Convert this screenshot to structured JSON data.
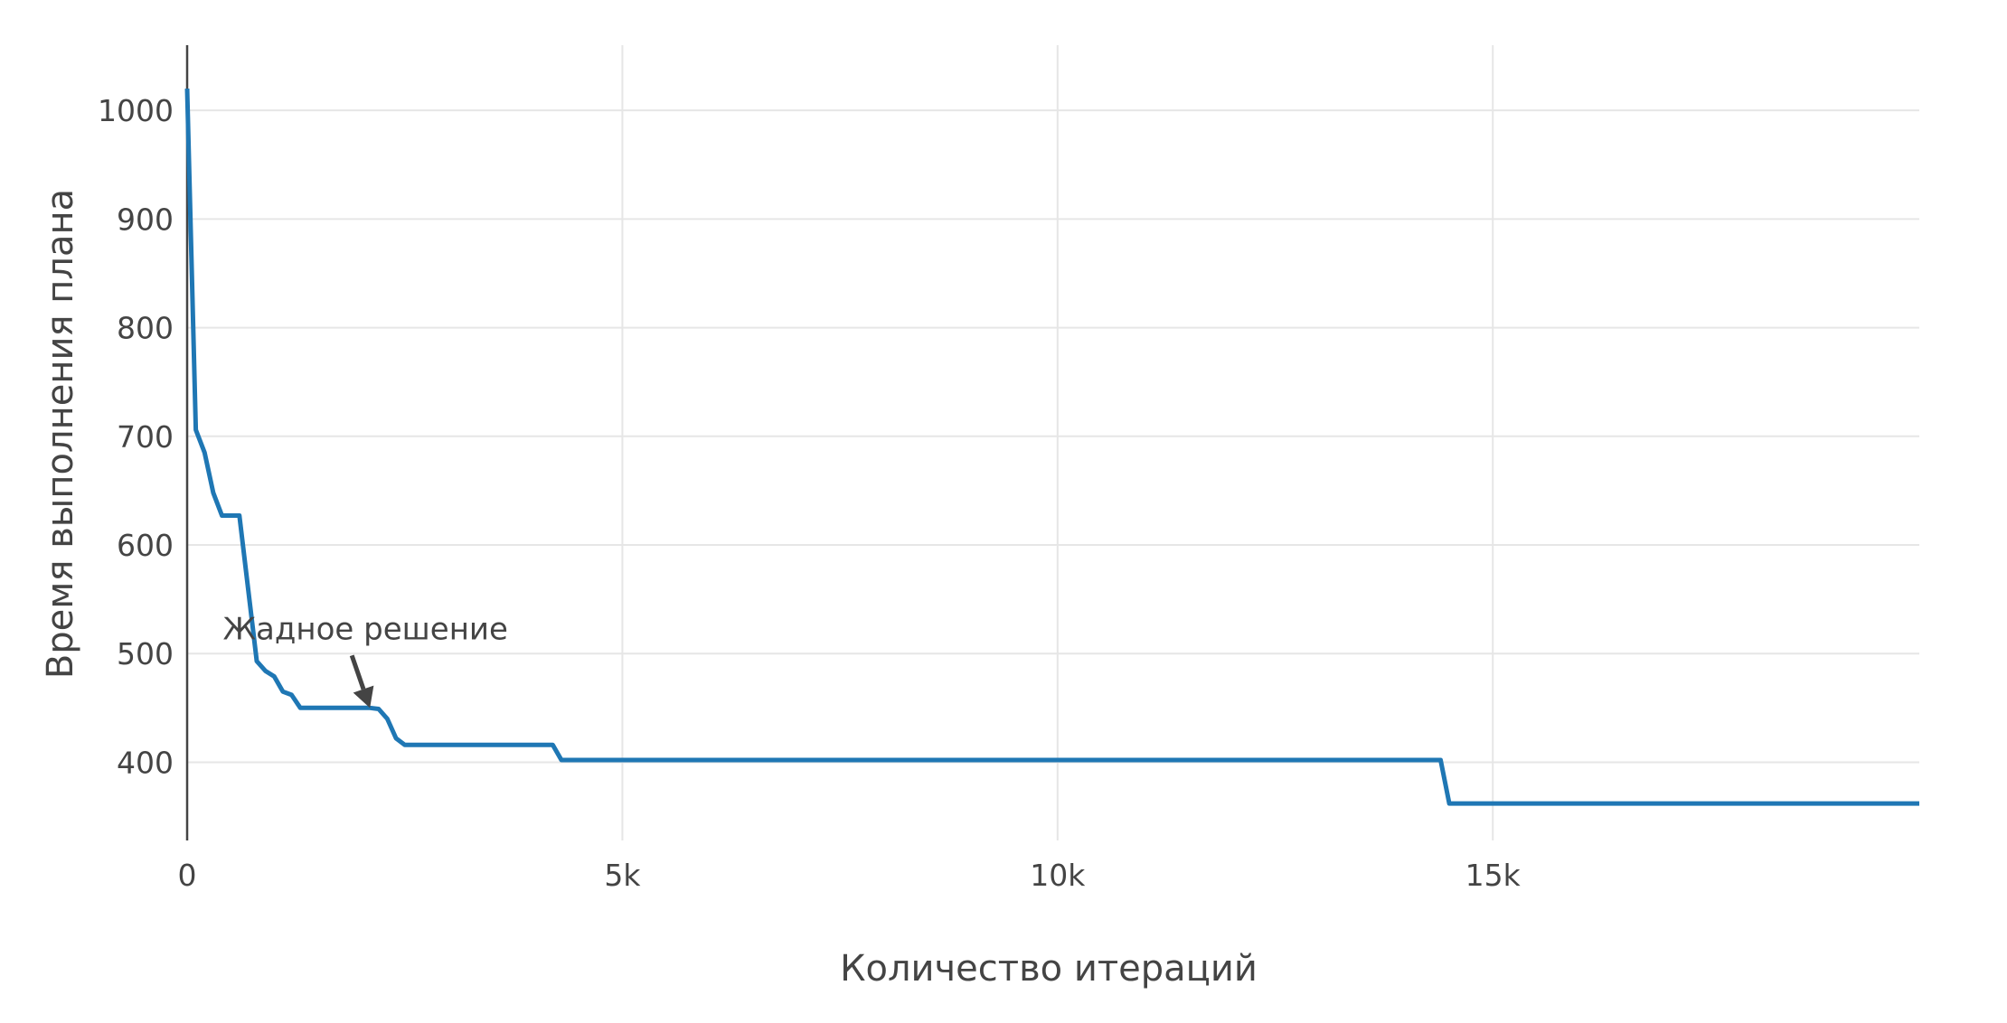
{
  "chart_data": {
    "type": "line",
    "title": "",
    "xlabel": "Количество итераций",
    "ylabel": "Время выполнения плана",
    "xlim": [
      0,
      19900
    ],
    "ylim": [
      328,
      1060
    ],
    "grid": true,
    "colors": {
      "line": "#1f77b4",
      "grid": "#e6e6e6",
      "axis": "#444444",
      "annotation": "#444444"
    },
    "x_ticks": [
      {
        "value": 0,
        "label": "0"
      },
      {
        "value": 5000,
        "label": "5k"
      },
      {
        "value": 10000,
        "label": "10k"
      },
      {
        "value": 15000,
        "label": "15k"
      }
    ],
    "y_ticks": [
      {
        "value": 400,
        "label": "400"
      },
      {
        "value": 500,
        "label": "500"
      },
      {
        "value": 600,
        "label": "600"
      },
      {
        "value": 700,
        "label": "700"
      },
      {
        "value": 800,
        "label": "800"
      },
      {
        "value": 900,
        "label": "900"
      },
      {
        "value": 1000,
        "label": "1000"
      }
    ],
    "series": [
      {
        "x": [
          0,
          100,
          200,
          300,
          400,
          600,
          700,
          800,
          900,
          1000,
          1100,
          1200,
          1300,
          2100,
          2200,
          2300,
          2400,
          2500,
          4200,
          4300,
          14400,
          14500,
          19900
        ],
        "y": [
          1020,
          706,
          685,
          648,
          627,
          627,
          560,
          493,
          484,
          479,
          465,
          462,
          450,
          450,
          449,
          440,
          422,
          416,
          416,
          402,
          402,
          362,
          362
        ]
      }
    ],
    "annotation": {
      "text": "Жадное решение",
      "x": 2100,
      "y": 450
    }
  }
}
